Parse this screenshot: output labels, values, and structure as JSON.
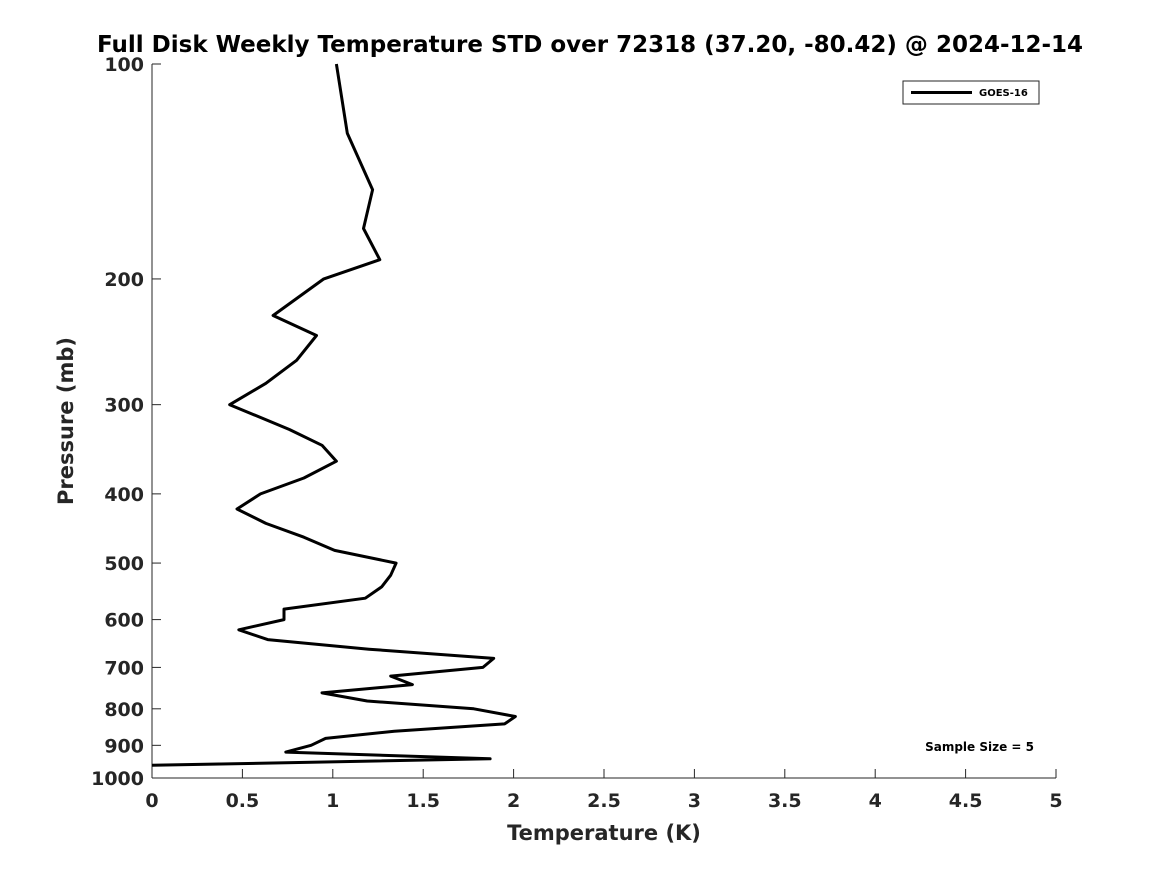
{
  "chart_data": {
    "type": "line",
    "title": "Full Disk Weekly Temperature STD over 72318 (37.20, -80.42) @ 2024-12-14",
    "xlabel": "Temperature (K)",
    "ylabel": "Pressure (mb)",
    "xlim": [
      0,
      5
    ],
    "ylim": [
      100,
      1000
    ],
    "y_scale": "log",
    "y_reversed": true,
    "grid": false,
    "legend_position": "top-right",
    "x_ticks": [
      0,
      0.5,
      1,
      1.5,
      2,
      2.5,
      3,
      3.5,
      4,
      4.5,
      5
    ],
    "x_tick_labels": [
      "0",
      "0.5",
      "1",
      "1.5",
      "2",
      "2.5",
      "3",
      "3.5",
      "4",
      "4.5",
      "5"
    ],
    "y_ticks": [
      100,
      200,
      300,
      400,
      500,
      600,
      700,
      800,
      900,
      1000
    ],
    "y_tick_labels": [
      "100",
      "200",
      "300",
      "400",
      "500",
      "600",
      "700",
      "800",
      "900",
      "1000"
    ],
    "series": [
      {
        "name": "GOES-16",
        "color": "#000000",
        "points": [
          [
            1.02,
            100
          ],
          [
            1.08,
            125
          ],
          [
            1.22,
            150
          ],
          [
            1.17,
            170
          ],
          [
            1.26,
            188
          ],
          [
            0.95,
            200
          ],
          [
            0.67,
            225
          ],
          [
            0.91,
            240
          ],
          [
            0.8,
            260
          ],
          [
            0.63,
            280
          ],
          [
            0.43,
            300
          ],
          [
            0.76,
            325
          ],
          [
            0.94,
            342
          ],
          [
            1.02,
            360
          ],
          [
            0.84,
            380
          ],
          [
            0.6,
            400
          ],
          [
            0.47,
            420
          ],
          [
            0.63,
            440
          ],
          [
            0.84,
            460
          ],
          [
            1.01,
            480
          ],
          [
            1.35,
            500
          ],
          [
            1.32,
            520
          ],
          [
            1.27,
            540
          ],
          [
            1.18,
            560
          ],
          [
            0.73,
            580
          ],
          [
            0.73,
            600
          ],
          [
            0.48,
            620
          ],
          [
            0.64,
            640
          ],
          [
            1.2,
            660
          ],
          [
            1.89,
            680
          ],
          [
            1.83,
            700
          ],
          [
            1.32,
            720
          ],
          [
            1.44,
            740
          ],
          [
            0.94,
            760
          ],
          [
            1.19,
            780
          ],
          [
            1.78,
            800
          ],
          [
            2.01,
            820
          ],
          [
            1.95,
            840
          ],
          [
            1.34,
            860
          ],
          [
            0.96,
            880
          ],
          [
            0.88,
            900
          ],
          [
            0.74,
            920
          ],
          [
            1.87,
            940
          ],
          [
            0.0,
            960
          ]
        ]
      }
    ],
    "annotation": "Sample Size = 5"
  }
}
